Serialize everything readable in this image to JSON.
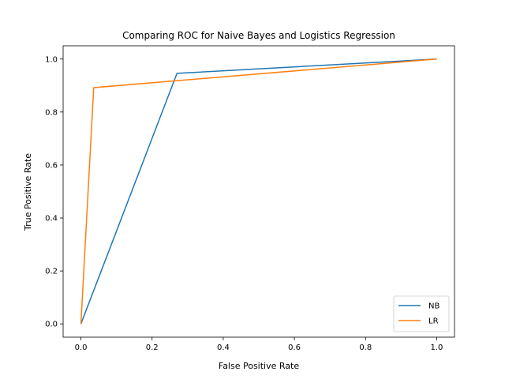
{
  "chart_data": {
    "type": "line",
    "title": "Comparing ROC for Naive Bayes and Logistics Regression",
    "xlabel": "False Positive Rate",
    "ylabel": "True Positive Rate",
    "xlim": [
      -0.05,
      1.05
    ],
    "ylim": [
      -0.05,
      1.05
    ],
    "xticks": [
      0.0,
      0.2,
      0.4,
      0.6,
      0.8,
      1.0
    ],
    "yticks": [
      0.0,
      0.2,
      0.4,
      0.6,
      0.8,
      1.0
    ],
    "xtick_labels": [
      "0.0",
      "0.2",
      "0.4",
      "0.6",
      "0.8",
      "1.0"
    ],
    "ytick_labels": [
      "0.0",
      "0.2",
      "0.4",
      "0.6",
      "0.8",
      "1.0"
    ],
    "grid": false,
    "legend_position": "bottom-right",
    "series": [
      {
        "name": "NB",
        "color": "#1f77b4",
        "x": [
          0.0,
          0.27,
          1.0
        ],
        "y": [
          0.0,
          0.946,
          1.0
        ]
      },
      {
        "name": "LR",
        "color": "#ff7f0e",
        "x": [
          0.0,
          0.036,
          1.0
        ],
        "y": [
          0.0,
          0.892,
          1.0
        ]
      }
    ]
  }
}
